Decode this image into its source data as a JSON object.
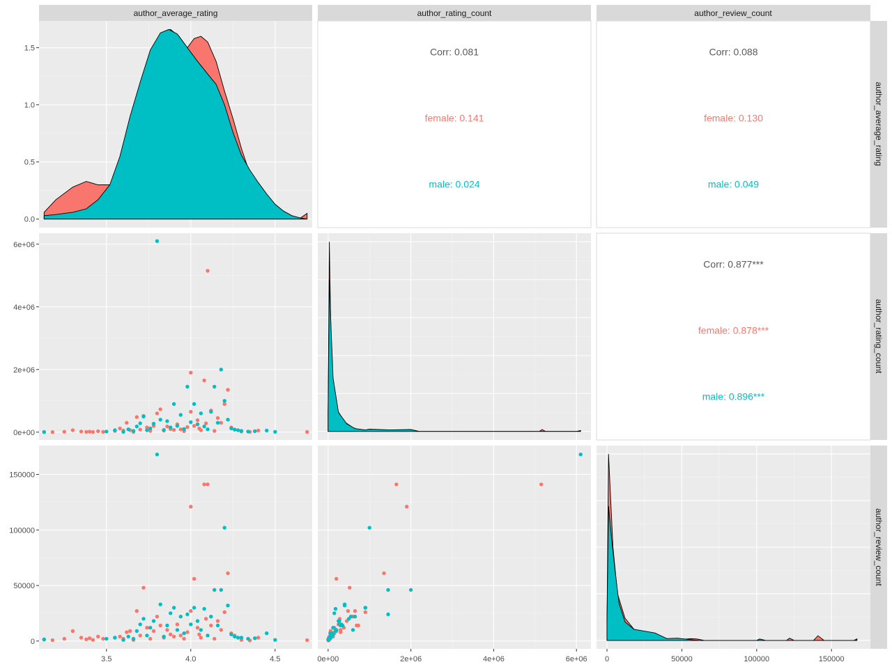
{
  "chart_data": {
    "type": "scatter",
    "variables": [
      "author_average_rating",
      "author_rating_count",
      "author_review_count"
    ],
    "colors": {
      "female": "#F8766D",
      "male": "#00BFC4",
      "panel_bg": "#EBEBEB",
      "strip_bg": "#D9D9D9",
      "grid": "#FFFFFF"
    },
    "axes": {
      "author_average_rating": {
        "range": [
          3.1,
          4.72
        ],
        "ticks": [
          3.5,
          4.0,
          4.5
        ],
        "tick_labels": [
          "3.5",
          "4.0",
          "4.5"
        ]
      },
      "author_rating_count": {
        "range": [
          -250000,
          6350000
        ],
        "ticks": [
          0,
          2000000,
          4000000,
          6000000
        ],
        "tick_labels": [
          "0e+00",
          "2e+06",
          "4e+06",
          "6e+06"
        ]
      },
      "author_review_count": {
        "range": [
          -7000,
          176000
        ],
        "ticks": [
          0,
          50000,
          100000,
          150000
        ],
        "tick_labels": [
          "0",
          "50000",
          "100000",
          "150000"
        ]
      },
      "density_rating": {
        "range": [
          -0.08,
          1.72
        ],
        "ticks": [
          0,
          0.5,
          1.0,
          1.5
        ],
        "tick_labels": [
          "0.0",
          "0.5",
          "1.0",
          "1.5"
        ]
      }
    },
    "correlations": [
      {
        "pair": "author_rating_count vs author_average_rating",
        "overall": "Corr: 0.081",
        "female": "female: 0.141",
        "male": "male: 0.024"
      },
      {
        "pair": "author_review_count vs author_average_rating",
        "overall": "Corr: 0.088",
        "female": "female: 0.130",
        "male": "male: 0.049"
      },
      {
        "pair": "author_review_count vs author_rating_count",
        "overall": "Corr: 0.877***",
        "female": "female: 0.878***",
        "male": "male: 0.896***"
      }
    ],
    "density_rating": {
      "female": [
        [
          3.13,
          0.06
        ],
        [
          3.2,
          0.17
        ],
        [
          3.3,
          0.28
        ],
        [
          3.38,
          0.33
        ],
        [
          3.45,
          0.3
        ],
        [
          3.52,
          0.3
        ],
        [
          3.58,
          0.42
        ],
        [
          3.64,
          0.75
        ],
        [
          3.7,
          1.1
        ],
        [
          3.76,
          1.45
        ],
        [
          3.82,
          1.62
        ],
        [
          3.88,
          1.66
        ],
        [
          3.93,
          1.6
        ],
        [
          3.98,
          1.5
        ],
        [
          4.02,
          1.58
        ],
        [
          4.06,
          1.6
        ],
        [
          4.1,
          1.55
        ],
        [
          4.15,
          1.38
        ],
        [
          4.2,
          1.12
        ],
        [
          4.25,
          0.88
        ],
        [
          4.3,
          0.62
        ],
        [
          4.35,
          0.4
        ],
        [
          4.4,
          0.24
        ],
        [
          4.45,
          0.14
        ],
        [
          4.5,
          0.08
        ],
        [
          4.55,
          0.04
        ],
        [
          4.6,
          0.02
        ],
        [
          4.65,
          0.01
        ],
        [
          4.69,
          0.05
        ]
      ],
      "male": [
        [
          3.13,
          0.03
        ],
        [
          3.2,
          0.04
        ],
        [
          3.3,
          0.06
        ],
        [
          3.38,
          0.09
        ],
        [
          3.45,
          0.17
        ],
        [
          3.52,
          0.3
        ],
        [
          3.58,
          0.55
        ],
        [
          3.64,
          0.9
        ],
        [
          3.7,
          1.2
        ],
        [
          3.76,
          1.48
        ],
        [
          3.82,
          1.63
        ],
        [
          3.87,
          1.66
        ],
        [
          3.92,
          1.62
        ],
        [
          3.98,
          1.5
        ],
        [
          4.04,
          1.38
        ],
        [
          4.1,
          1.27
        ],
        [
          4.15,
          1.18
        ],
        [
          4.2,
          1.0
        ],
        [
          4.25,
          0.76
        ],
        [
          4.3,
          0.56
        ],
        [
          4.35,
          0.43
        ],
        [
          4.4,
          0.32
        ],
        [
          4.45,
          0.22
        ],
        [
          4.5,
          0.13
        ],
        [
          4.55,
          0.07
        ],
        [
          4.6,
          0.03
        ],
        [
          4.65,
          0.01
        ],
        [
          4.69,
          0.0
        ]
      ]
    },
    "density_rating_count_shape": {
      "female": [
        [
          0,
          0.1
        ],
        [
          30000,
          1.0
        ],
        [
          60000,
          0.6
        ],
        [
          100000,
          0.3
        ],
        [
          200000,
          0.12
        ],
        [
          400000,
          0.05
        ],
        [
          600000,
          0.02
        ],
        [
          800000,
          0.005
        ],
        [
          1400000,
          0.004
        ],
        [
          1600000,
          0.008
        ],
        [
          1900000,
          0.006
        ],
        [
          2200000,
          0.0
        ],
        [
          5100000,
          0.0
        ],
        [
          5170000,
          0.01
        ],
        [
          5250000,
          0.0
        ],
        [
          6100000,
          0.0
        ]
      ],
      "male": [
        [
          0,
          0.1
        ],
        [
          30000,
          0.8
        ],
        [
          70000,
          0.55
        ],
        [
          120000,
          0.28
        ],
        [
          250000,
          0.1
        ],
        [
          450000,
          0.04
        ],
        [
          650000,
          0.015
        ],
        [
          900000,
          0.008
        ],
        [
          1000000,
          0.012
        ],
        [
          1500000,
          0.008
        ],
        [
          2000000,
          0.01
        ],
        [
          2200000,
          0.0
        ],
        [
          6000000,
          0.0
        ],
        [
          6100000,
          0.005
        ]
      ]
    },
    "density_review_count_shape": {
      "female": [
        [
          0,
          0.1
        ],
        [
          1000,
          1.0
        ],
        [
          2500,
          0.75
        ],
        [
          4000,
          0.5
        ],
        [
          7000,
          0.25
        ],
        [
          12000,
          0.12
        ],
        [
          18000,
          0.06
        ],
        [
          25000,
          0.04
        ],
        [
          32000,
          0.03
        ],
        [
          40000,
          0.01
        ],
        [
          50000,
          0.005
        ],
        [
          56000,
          0.01
        ],
        [
          60000,
          0.008
        ],
        [
          65000,
          0.0
        ],
        [
          100000,
          0.0
        ],
        [
          102000,
          0.006
        ],
        [
          105000,
          0.0
        ],
        [
          120000,
          0.0
        ],
        [
          122000,
          0.012
        ],
        [
          125000,
          0.0
        ],
        [
          138000,
          0.0
        ],
        [
          141000,
          0.025
        ],
        [
          145000,
          0.0
        ],
        [
          165000,
          0.0
        ],
        [
          167000,
          0.008
        ]
      ],
      "male": [
        [
          0,
          0.1
        ],
        [
          1000,
          0.72
        ],
        [
          3000,
          0.55
        ],
        [
          5000,
          0.4
        ],
        [
          8000,
          0.2
        ],
        [
          12000,
          0.1
        ],
        [
          18000,
          0.06
        ],
        [
          25000,
          0.05
        ],
        [
          32000,
          0.04
        ],
        [
          40000,
          0.01
        ],
        [
          47000,
          0.012
        ],
        [
          55000,
          0.005
        ],
        [
          62000,
          0.0
        ],
        [
          100000,
          0.0
        ],
        [
          102000,
          0.008
        ],
        [
          106000,
          0.0
        ],
        [
          165000,
          0.0
        ],
        [
          167000,
          0.008
        ]
      ]
    },
    "points": {
      "female": [
        [
          3.13,
          3000,
          1200
        ],
        [
          3.18,
          2000,
          800
        ],
        [
          3.25,
          12000,
          2000
        ],
        [
          3.3,
          60000,
          9000
        ],
        [
          3.35,
          20000,
          3000
        ],
        [
          3.38,
          8000,
          1500
        ],
        [
          3.4,
          15000,
          2500
        ],
        [
          3.42,
          5000,
          1000
        ],
        [
          3.45,
          30000,
          4000
        ],
        [
          3.48,
          10000,
          2000
        ],
        [
          3.55,
          40000,
          3000
        ],
        [
          3.58,
          120000,
          4000
        ],
        [
          3.6,
          50000,
          2000
        ],
        [
          3.62,
          300000,
          8000
        ],
        [
          3.64,
          60000,
          9000
        ],
        [
          3.66,
          10000,
          1000
        ],
        [
          3.68,
          480000,
          27000
        ],
        [
          3.7,
          80000,
          5000
        ],
        [
          3.72,
          520000,
          48000
        ],
        [
          3.74,
          150000,
          12000
        ],
        [
          3.76,
          40000,
          2000
        ],
        [
          3.78,
          200000,
          9000
        ],
        [
          3.8,
          600000,
          22000
        ],
        [
          3.82,
          730000,
          14000
        ],
        [
          3.84,
          50000,
          3000
        ],
        [
          3.86,
          180000,
          10000
        ],
        [
          3.88,
          100000,
          6000
        ],
        [
          3.9,
          70000,
          4000
        ],
        [
          3.92,
          250000,
          15000
        ],
        [
          3.94,
          90000,
          5000
        ],
        [
          3.96,
          30000,
          2000
        ],
        [
          3.98,
          160000,
          8000
        ],
        [
          4.0,
          1900000,
          121000
        ],
        [
          4.0,
          650000,
          27000
        ],
        [
          4.02,
          200000,
          56000
        ],
        [
          4.04,
          380000,
          12000
        ],
        [
          4.05,
          120000,
          6000
        ],
        [
          4.06,
          60000,
          3000
        ],
        [
          4.08,
          1650000,
          141000
        ],
        [
          4.09,
          280000,
          20000
        ],
        [
          4.1,
          5150000,
          141000
        ],
        [
          4.12,
          690000,
          14000
        ],
        [
          4.14,
          40000,
          2000
        ],
        [
          4.16,
          450000,
          18000
        ],
        [
          4.18,
          300000,
          10000
        ],
        [
          4.2,
          900000,
          26000
        ],
        [
          4.22,
          1350000,
          61000
        ],
        [
          4.24,
          150000,
          7000
        ],
        [
          4.26,
          80000,
          5000
        ],
        [
          4.3,
          20000,
          1000
        ],
        [
          4.35,
          10000,
          500
        ],
        [
          4.4,
          50000,
          3000
        ],
        [
          4.69,
          5000,
          800
        ]
      ],
      "male": [
        [
          3.13,
          4000,
          1500
        ],
        [
          3.5,
          20000,
          2000
        ],
        [
          3.55,
          60000,
          3000
        ],
        [
          3.6,
          10000,
          1000
        ],
        [
          3.63,
          90000,
          4000
        ],
        [
          3.66,
          40000,
          2000
        ],
        [
          3.68,
          180000,
          9000
        ],
        [
          3.7,
          280000,
          15000
        ],
        [
          3.72,
          500000,
          20000
        ],
        [
          3.74,
          60000,
          5000
        ],
        [
          3.76,
          120000,
          12000
        ],
        [
          3.78,
          270000,
          18000
        ],
        [
          3.8,
          6100000,
          168000
        ],
        [
          3.82,
          400000,
          33000
        ],
        [
          3.84,
          70000,
          4000
        ],
        [
          3.86,
          350000,
          14000
        ],
        [
          3.88,
          150000,
          25000
        ],
        [
          3.9,
          900000,
          30000
        ],
        [
          3.92,
          200000,
          10000
        ],
        [
          3.94,
          550000,
          22000
        ],
        [
          3.96,
          100000,
          7000
        ],
        [
          3.98,
          1450000,
          24000
        ],
        [
          4.0,
          320000,
          15000
        ],
        [
          4.02,
          900000,
          30000
        ],
        [
          4.04,
          250000,
          18000
        ],
        [
          4.06,
          600000,
          10000
        ],
        [
          4.08,
          180000,
          29000
        ],
        [
          4.1,
          90000,
          5000
        ],
        [
          4.12,
          650000,
          22000
        ],
        [
          4.14,
          1450000,
          46000
        ],
        [
          4.16,
          300000,
          14000
        ],
        [
          4.18,
          2000000,
          46000
        ],
        [
          4.2,
          1000000,
          102000
        ],
        [
          4.22,
          400000,
          32000
        ],
        [
          4.24,
          120000,
          6000
        ],
        [
          4.26,
          80000,
          4000
        ],
        [
          4.28,
          60000,
          3000
        ],
        [
          4.3,
          40000,
          3000
        ],
        [
          4.34,
          20000,
          2000
        ],
        [
          4.38,
          30000,
          2500
        ],
        [
          4.45,
          50000,
          7000
        ],
        [
          4.5,
          10000,
          1000
        ]
      ]
    }
  },
  "strips": {
    "top": [
      "author_average_rating",
      "author_rating_count",
      "author_review_count"
    ],
    "right": [
      "author_average_rating",
      "author_rating_count",
      "author_review_count"
    ]
  }
}
